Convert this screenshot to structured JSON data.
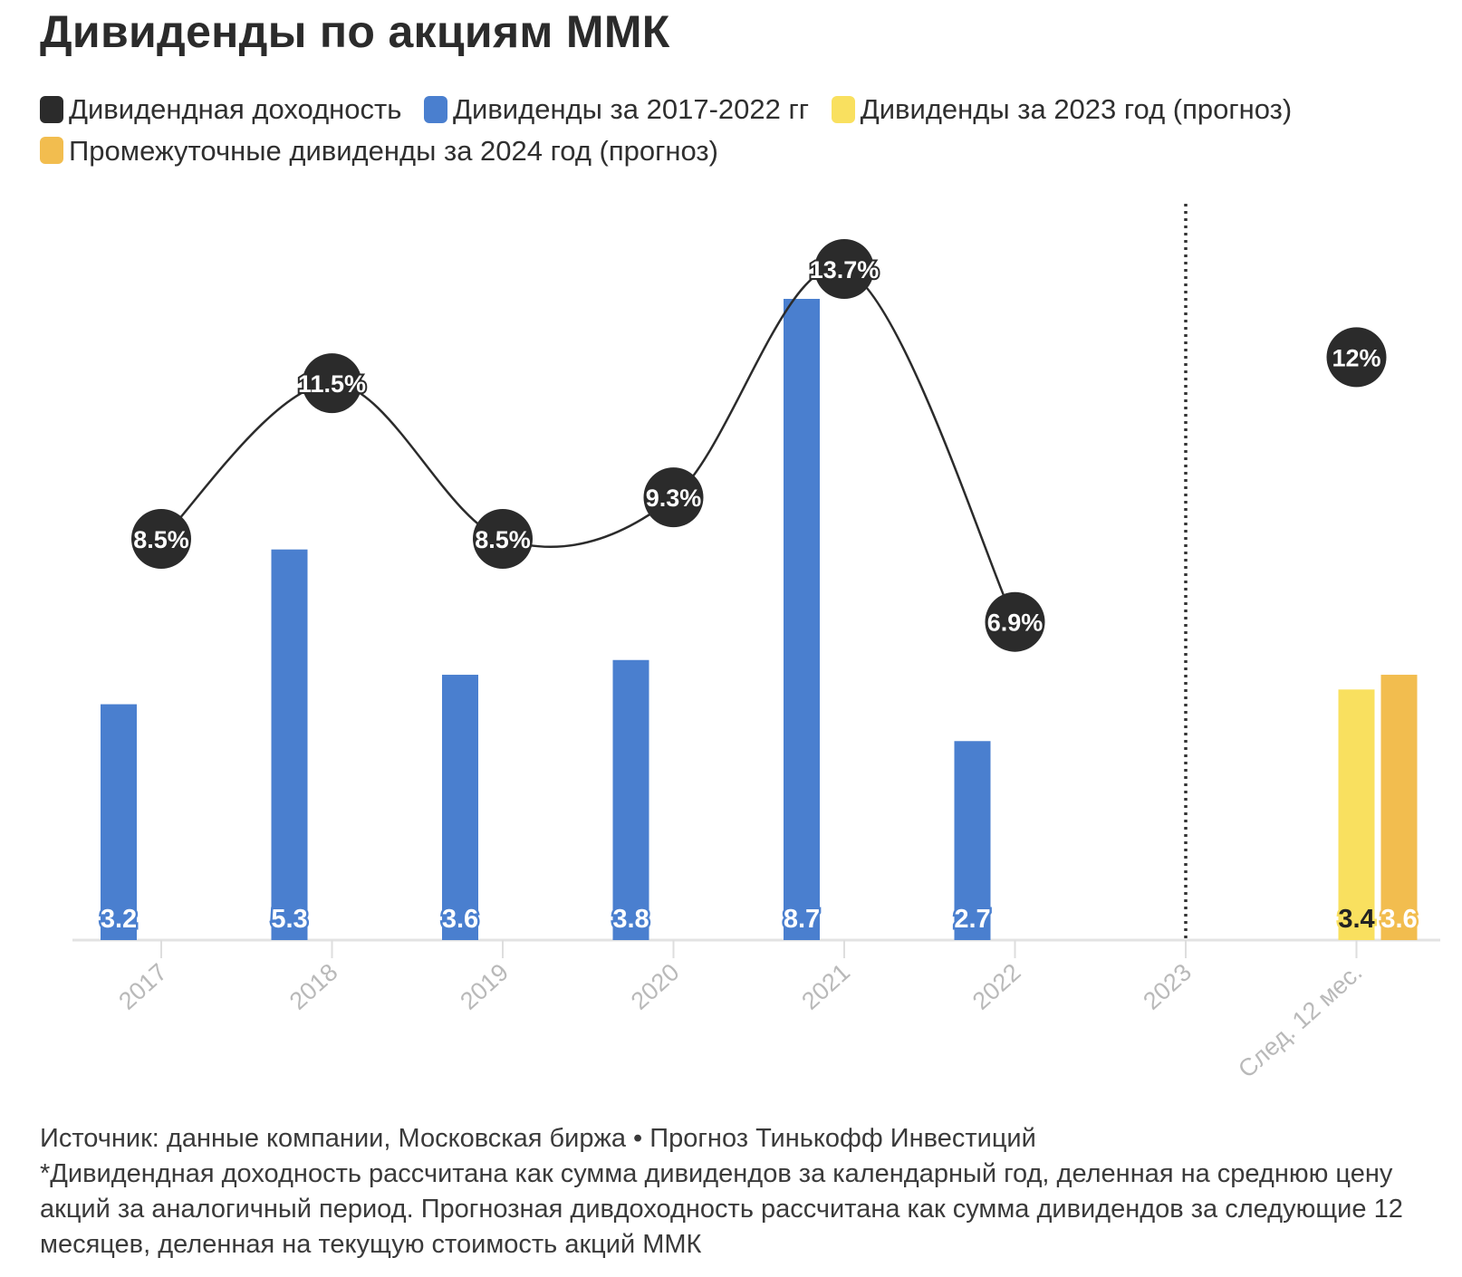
{
  "title": "Дивиденды по акциям ММК",
  "legend": [
    {
      "label": "Дивидендная доходность",
      "color": "#2b2b2b"
    },
    {
      "label": "Дивиденды за 2017-2022 гг",
      "color": "#4a7fcf"
    },
    {
      "label": "Дивиденды за 2023 год (прогноз)",
      "color": "#f9e05f"
    },
    {
      "label": "Промежуточные дивиденды за 2024 год (прогноз)",
      "color": "#f2bd4f"
    }
  ],
  "chart_data": {
    "type": "bar",
    "categories": [
      "2017",
      "2018",
      "2019",
      "2020",
      "2021",
      "2022",
      "2023",
      "След. 12 мес."
    ],
    "series": [
      {
        "name": "Дивиденды за 2017-2022 гг",
        "color": "#4a7fcf",
        "values": [
          3.2,
          5.3,
          3.6,
          3.8,
          8.7,
          2.7,
          null,
          null
        ]
      },
      {
        "name": "Дивиденды за 2023 год (прогноз)",
        "color": "#f9e05f",
        "values": [
          null,
          null,
          null,
          null,
          null,
          null,
          null,
          3.4
        ]
      },
      {
        "name": "Промежуточные дивиденды за 2024 год (прогноз)",
        "color": "#f2bd4f",
        "values": [
          null,
          null,
          null,
          null,
          null,
          null,
          null,
          3.6
        ]
      },
      {
        "name": "Дивидендная доходность",
        "type": "line",
        "color": "#2b2b2b",
        "values": [
          8.5,
          11.5,
          8.5,
          9.3,
          13.7,
          6.9,
          null,
          12
        ],
        "labels": [
          "8.5%",
          "11.5%",
          "8.5%",
          "9.3%",
          "13.7%",
          "6.9%",
          "",
          "12%"
        ]
      }
    ],
    "bar_labels": [
      "3.2",
      "5.3",
      "3.6",
      "3.8",
      "8.7",
      "2.7",
      "3.4",
      "3.6"
    ],
    "ylim_dividends": [
      0,
      8.7
    ],
    "ylim_yield": [
      0,
      13.7
    ],
    "divider_after": "2022",
    "grid": false
  },
  "footer": {
    "source": "Источник: данные компании, Московская биржа • Прогноз Тинькофф Инвестиций",
    "note": "*Дивидендная доходность рассчитана как сумма дивидендов за календарный год, деленная на среднюю цену акций за аналогичный период. Прогнозная дивдоходность рассчитана как сумма дивидендов за следующие 12 месяцев, деленная на текущую стоимость акций ММК"
  }
}
